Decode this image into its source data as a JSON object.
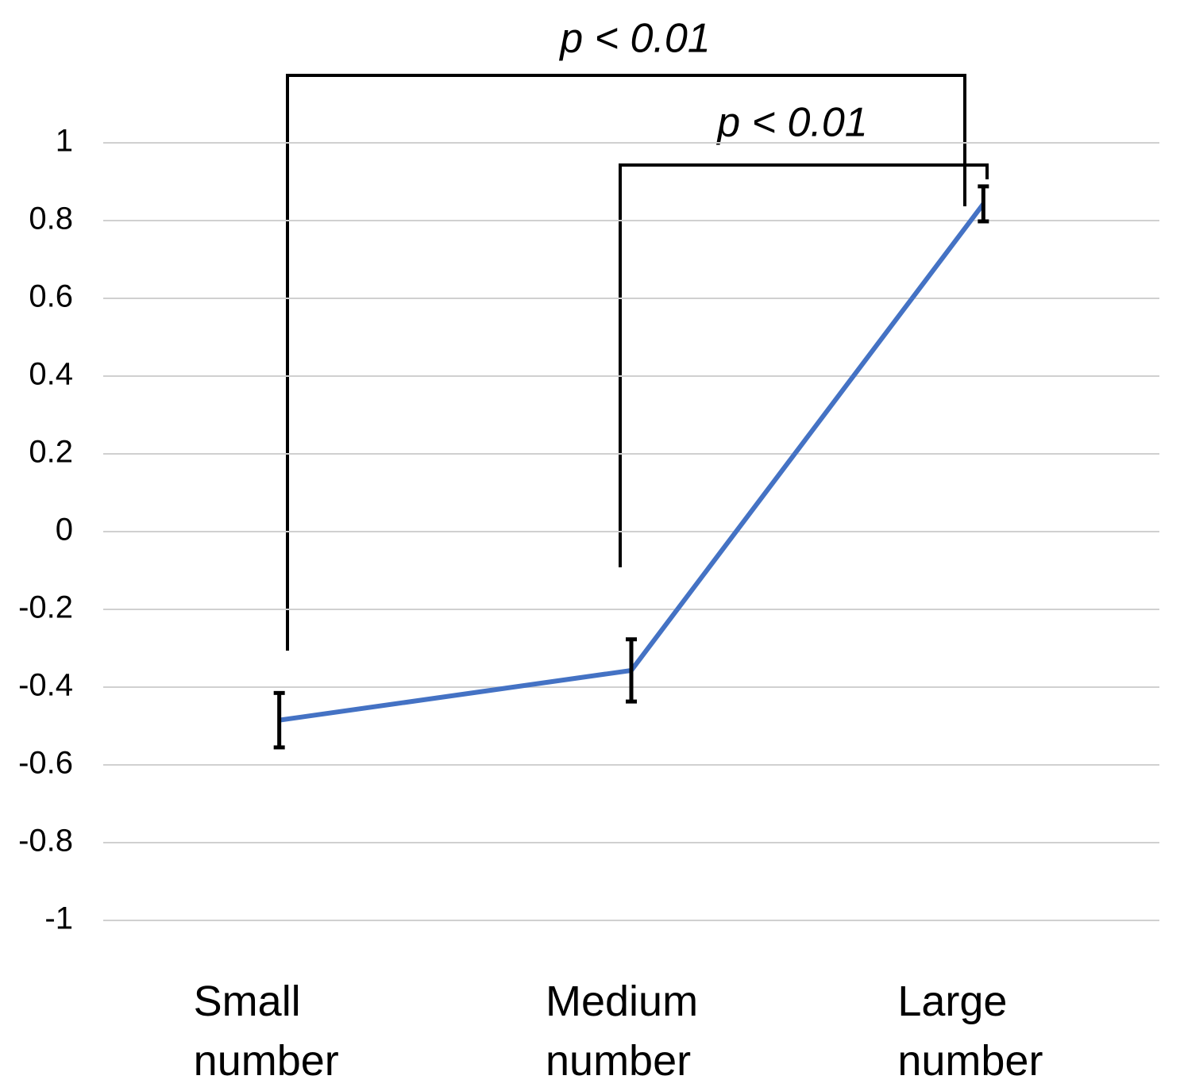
{
  "chart_data": {
    "type": "line",
    "categories": [
      "Small number",
      "Medium number",
      "Large number"
    ],
    "series": [
      {
        "color": "#4472c4",
        "values": [
          -0.485,
          -0.357,
          0.843
        ],
        "errors": [
          0.07,
          0.08,
          0.045
        ]
      }
    ],
    "ylim": [
      -1,
      1
    ],
    "yticks": [
      -1,
      -0.8,
      -0.6,
      -0.4,
      -0.2,
      0,
      0.2,
      0.4,
      0.6,
      0.8,
      1
    ],
    "grid": true,
    "annotations": [
      "p < 0.01",
      "p < 0.01"
    ]
  }
}
